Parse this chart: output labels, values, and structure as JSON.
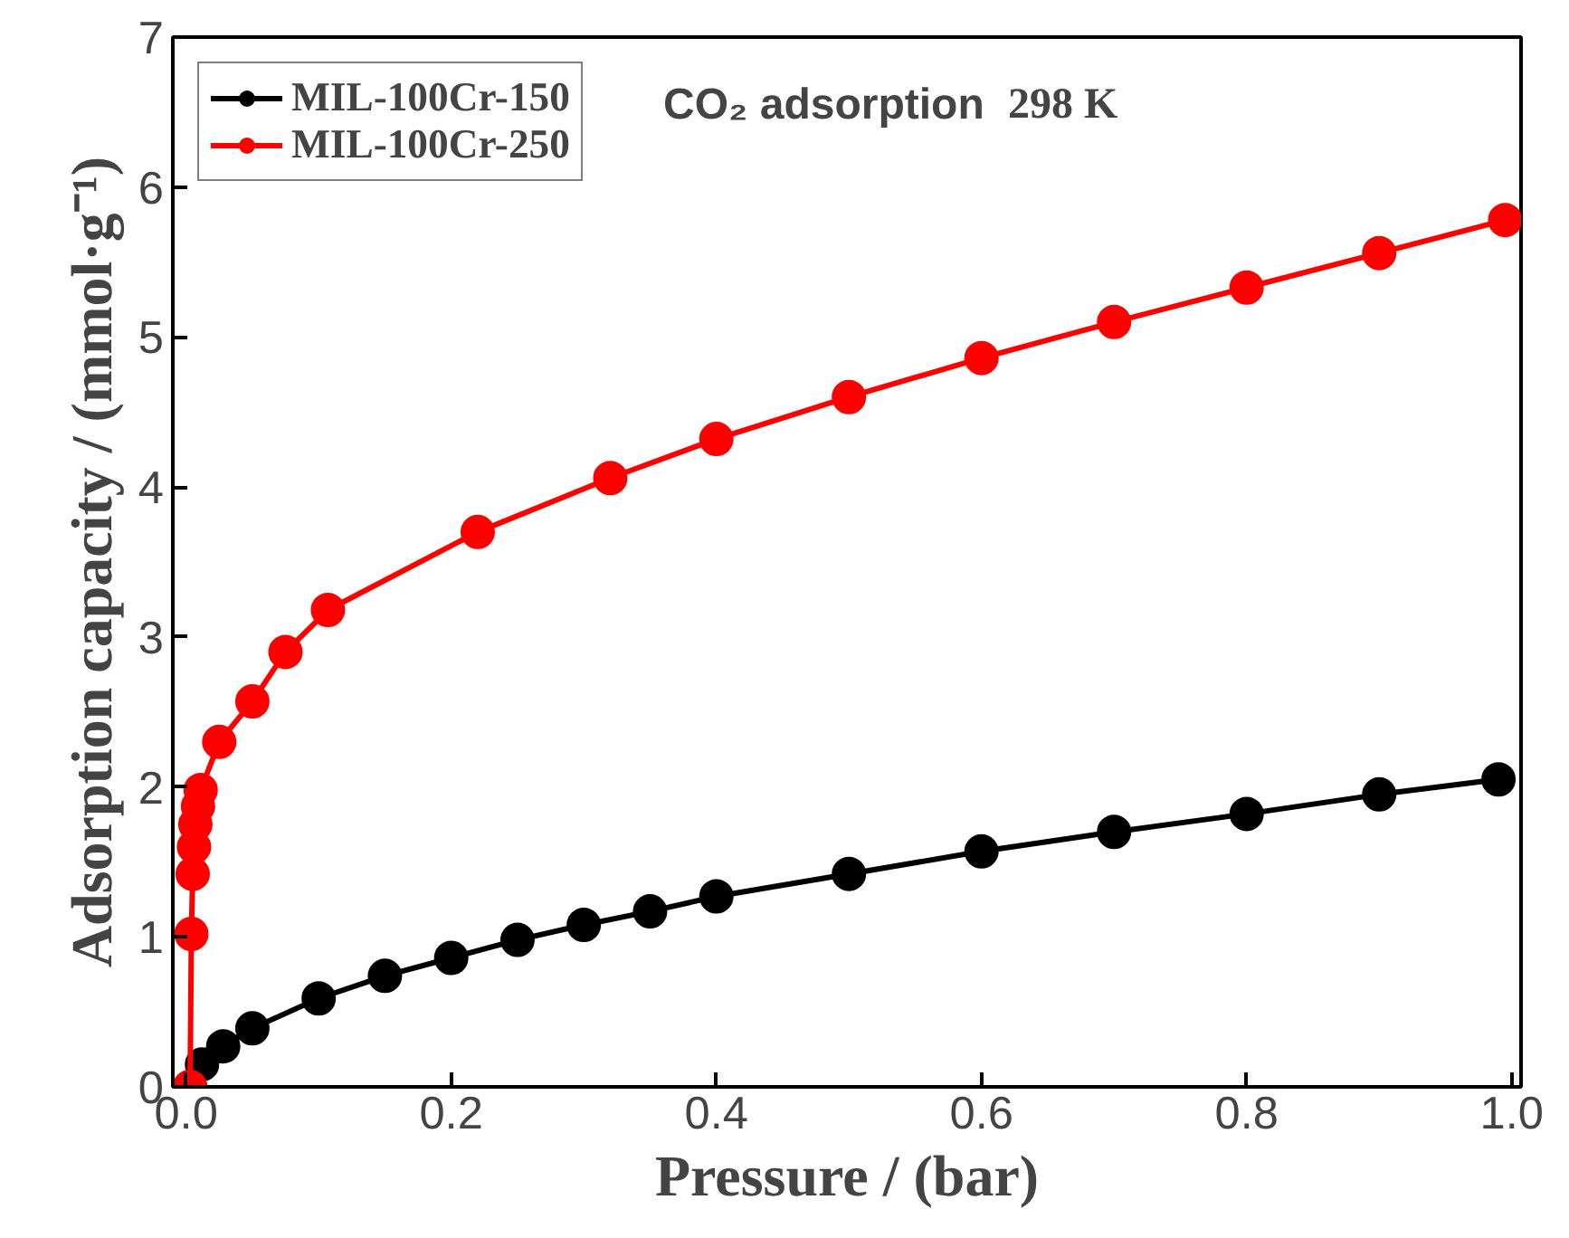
{
  "chart_data": {
    "type": "line",
    "xlabel": "Pressure / (bar)",
    "ylabel": "Adsorption capacity / (mmol·g⁻¹)",
    "annotations": [
      "CO₂ adsorption",
      "298 K"
    ],
    "series": [
      {
        "name": "MIL-100Cr-150",
        "color": "#000000",
        "x": [
          0.003,
          0.012,
          0.028,
          0.05,
          0.1,
          0.15,
          0.2,
          0.25,
          0.3,
          0.35,
          0.4,
          0.5,
          0.6,
          0.7,
          0.8,
          0.9,
          0.99
        ],
        "values": [
          0.0,
          0.15,
          0.27,
          0.39,
          0.59,
          0.74,
          0.86,
          0.98,
          1.08,
          1.17,
          1.27,
          1.42,
          1.57,
          1.7,
          1.82,
          1.95,
          2.05
        ]
      },
      {
        "name": "MIL-100Cr-250",
        "color": "#ff0000",
        "x": [
          0.003,
          0.004,
          0.005,
          0.006,
          0.007,
          0.009,
          0.011,
          0.025,
          0.05,
          0.075,
          0.107,
          0.22,
          0.32,
          0.4,
          0.5,
          0.6,
          0.7,
          0.8,
          0.9,
          0.995
        ],
        "values": [
          0.0,
          1.02,
          1.42,
          1.6,
          1.75,
          1.87,
          1.98,
          2.3,
          2.57,
          2.9,
          3.18,
          3.7,
          4.06,
          4.32,
          4.6,
          4.86,
          5.1,
          5.33,
          5.56,
          5.78
        ]
      }
    ],
    "xlim": [
      -0.01,
      1.007
    ],
    "ylim": [
      0,
      7
    ],
    "xticks": [
      {
        "value": 0,
        "label": "0.0"
      },
      {
        "value": 0.2,
        "label": "0.2"
      },
      {
        "value": 0.4,
        "label": "0.4"
      },
      {
        "value": 0.6,
        "label": "0.6"
      },
      {
        "value": 0.8,
        "label": "0.8"
      },
      {
        "value": 1.0,
        "label": "1.0"
      }
    ],
    "yticks": [
      0,
      1,
      2,
      3,
      4,
      5,
      6,
      7
    ],
    "grid": false,
    "legend": "top left",
    "marker": "circle",
    "line_style": "solid"
  }
}
